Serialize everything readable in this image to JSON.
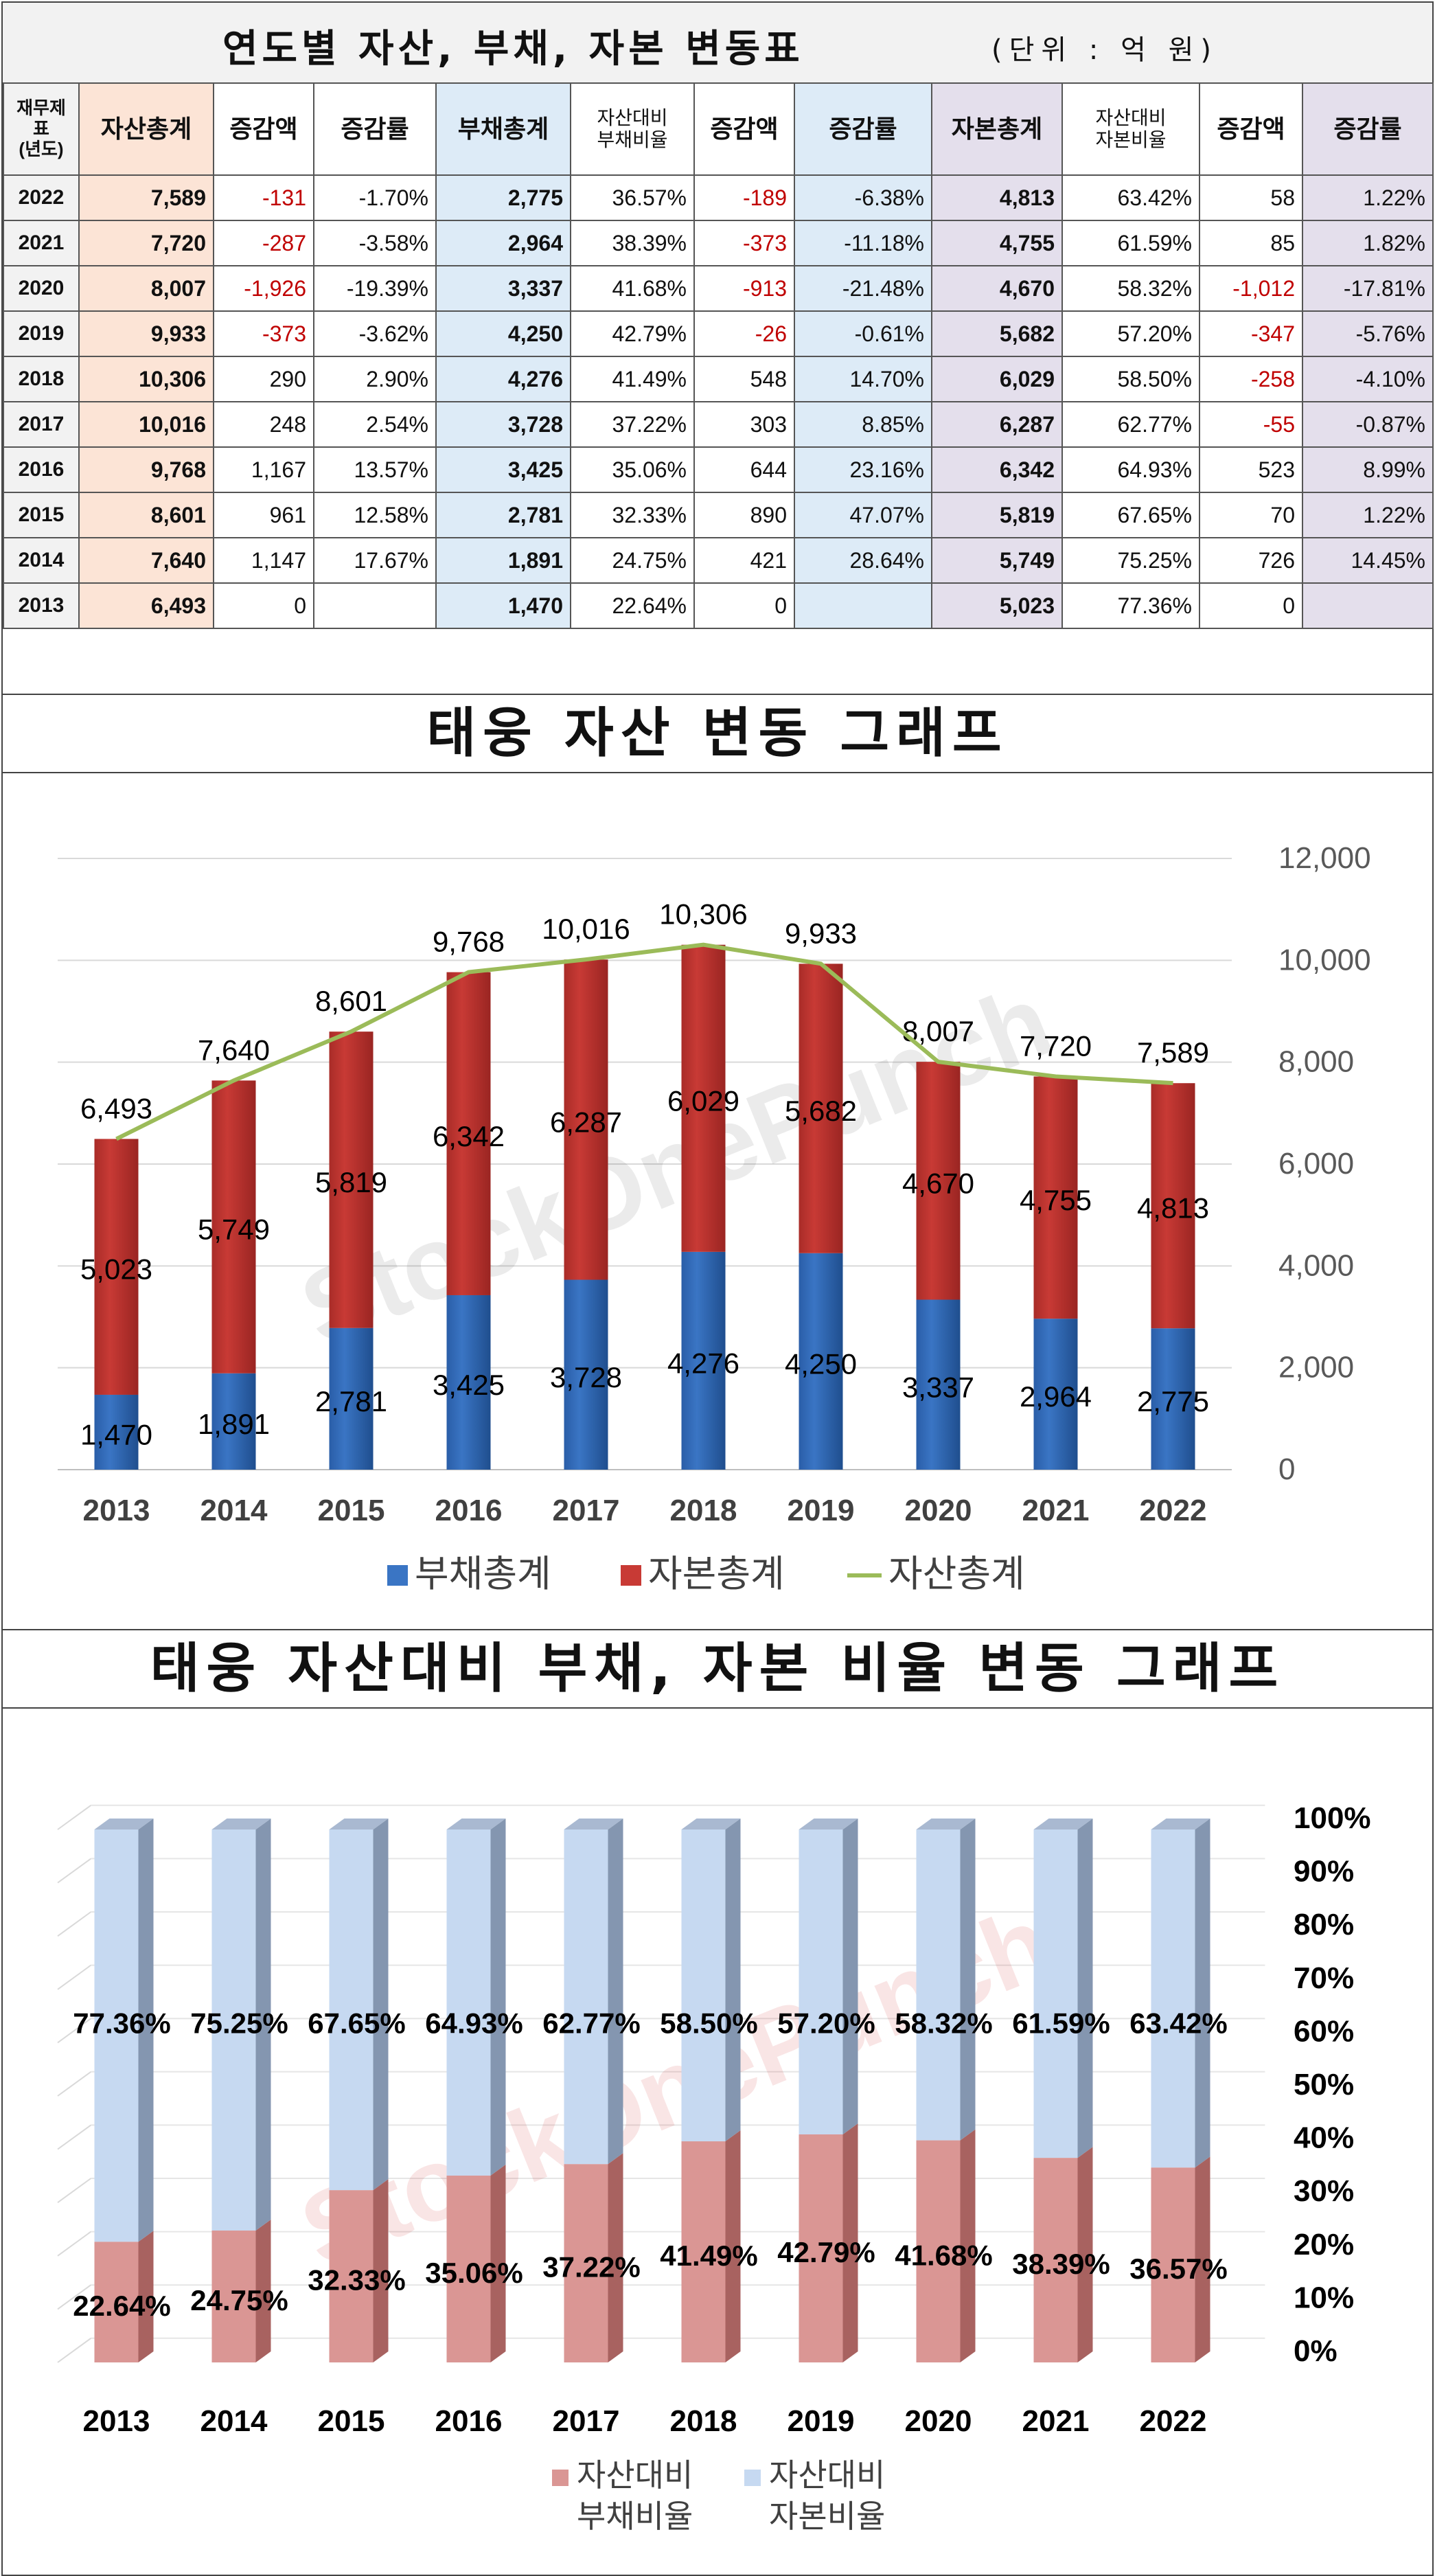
{
  "table": {
    "title": "연도별 자산, 부채, 자본 변동표",
    "unit": "(단위 : 억 원)",
    "headers": [
      "재무제표\n(년도)",
      "자산총계",
      "증감액",
      "증감률",
      "부채총계",
      "자산대비\n부채비율",
      "증감액",
      "증감률",
      "자본총계",
      "자산대비\n자본비율",
      "증감액",
      "증감률"
    ],
    "rows": [
      [
        "2022",
        "7,589",
        "-131",
        "-1.70%",
        "2,775",
        "36.57%",
        "-189",
        "-6.38%",
        "4,813",
        "63.42%",
        "58",
        "1.22%"
      ],
      [
        "2021",
        "7,720",
        "-287",
        "-3.58%",
        "2,964",
        "38.39%",
        "-373",
        "-11.18%",
        "4,755",
        "61.59%",
        "85",
        "1.82%"
      ],
      [
        "2020",
        "8,007",
        "-1,926",
        "-19.39%",
        "3,337",
        "41.68%",
        "-913",
        "-21.48%",
        "4,670",
        "58.32%",
        "-1,012",
        "-17.81%"
      ],
      [
        "2019",
        "9,933",
        "-373",
        "-3.62%",
        "4,250",
        "42.79%",
        "-26",
        "-0.61%",
        "5,682",
        "57.20%",
        "-347",
        "-5.76%"
      ],
      [
        "2018",
        "10,306",
        "290",
        "2.90%",
        "4,276",
        "41.49%",
        "548",
        "14.70%",
        "6,029",
        "58.50%",
        "-258",
        "-4.10%"
      ],
      [
        "2017",
        "10,016",
        "248",
        "2.54%",
        "3,728",
        "37.22%",
        "303",
        "8.85%",
        "6,287",
        "62.77%",
        "-55",
        "-0.87%"
      ],
      [
        "2016",
        "9,768",
        "1,167",
        "13.57%",
        "3,425",
        "35.06%",
        "644",
        "23.16%",
        "6,342",
        "64.93%",
        "523",
        "8.99%"
      ],
      [
        "2015",
        "8,601",
        "961",
        "12.58%",
        "2,781",
        "32.33%",
        "890",
        "47.07%",
        "5,819",
        "67.65%",
        "70",
        "1.22%"
      ],
      [
        "2014",
        "7,640",
        "1,147",
        "17.67%",
        "1,891",
        "24.75%",
        "421",
        "28.64%",
        "5,749",
        "75.25%",
        "726",
        "14.45%"
      ],
      [
        "2013",
        "6,493",
        "0",
        "",
        "1,470",
        "22.64%",
        "0",
        "",
        "5,023",
        "77.36%",
        "0",
        ""
      ]
    ],
    "colors": {
      "asset": "#fce4d6",
      "debt": "#ddebf7",
      "equity": "#e4dfec",
      "negative": "#c00000"
    }
  },
  "chart1_title": "태웅 자산 변동 그래프",
  "chart2_title": "태웅 자산대비 부채, 자본 비율 변동 그래프",
  "watermark": "StockOnePunch",
  "chart_data": [
    {
      "type": "bar",
      "stacked": true,
      "categories": [
        "2013",
        "2014",
        "2015",
        "2016",
        "2017",
        "2018",
        "2019",
        "2020",
        "2021",
        "2022"
      ],
      "series": [
        {
          "name": "부채총계",
          "kind": "bar",
          "color": "#3a75c4",
          "values": [
            1470,
            1891,
            2781,
            3425,
            3728,
            4276,
            4250,
            3337,
            2964,
            2775
          ],
          "labels": [
            "1,470",
            "1,891",
            "2,781",
            "3,425",
            "3,728",
            "4,276",
            "4,250",
            "3,337",
            "2,964",
            "2,775"
          ]
        },
        {
          "name": "자본총계",
          "kind": "bar",
          "color": "#c83a35",
          "values": [
            5023,
            5749,
            5819,
            6342,
            6287,
            6029,
            5682,
            4670,
            4755,
            4813
          ],
          "labels": [
            "5,023",
            "5,749",
            "5,819",
            "6,342",
            "6,287",
            "6,029",
            "5,682",
            "4,670",
            "4,755",
            "4,813"
          ]
        },
        {
          "name": "자산총계",
          "kind": "line",
          "color": "#9bbb59",
          "values": [
            6493,
            7640,
            8601,
            9768,
            10016,
            10306,
            9933,
            8007,
            7720,
            7589
          ],
          "labels": [
            "6,493",
            "7,640",
            "8,601",
            "9,768",
            "10,016",
            "10,306",
            "9,933",
            "8,007",
            "7,720",
            "7,589"
          ]
        }
      ],
      "ylim": [
        0,
        12000
      ],
      "yticks": [
        "0",
        "2,000",
        "4,000",
        "6,000",
        "8,000",
        "10,000",
        "12,000"
      ],
      "y_axis_side": "right",
      "grid": true,
      "legend": "bottom"
    },
    {
      "type": "bar",
      "stacked": true,
      "percent": true,
      "categories": [
        "2013",
        "2014",
        "2015",
        "2016",
        "2017",
        "2018",
        "2019",
        "2020",
        "2021",
        "2022"
      ],
      "series": [
        {
          "name": "자산대비\n부채비율",
          "color": "#da9694",
          "values": [
            22.64,
            24.75,
            32.33,
            35.06,
            37.22,
            41.49,
            42.79,
            41.68,
            38.39,
            36.57
          ],
          "labels": [
            "22.64%",
            "24.75%",
            "32.33%",
            "35.06%",
            "37.22%",
            "41.49%",
            "42.79%",
            "41.68%",
            "38.39%",
            "36.57%"
          ]
        },
        {
          "name": "자산대비\n자본비율",
          "color": "#c6d9f1",
          "values": [
            77.36,
            75.25,
            67.65,
            64.93,
            62.77,
            58.5,
            57.2,
            58.32,
            61.59,
            63.42
          ],
          "labels": [
            "77.36%",
            "75.25%",
            "67.65%",
            "64.93%",
            "62.77%",
            "58.50%",
            "57.20%",
            "58.32%",
            "61.59%",
            "63.42%"
          ]
        }
      ],
      "ylim": [
        0,
        100
      ],
      "yticks": [
        "0%",
        "10%",
        "20%",
        "30%",
        "40%",
        "50%",
        "60%",
        "70%",
        "80%",
        "90%",
        "100%"
      ],
      "y_axis_side": "right",
      "grid": true,
      "legend": "bottom"
    }
  ]
}
